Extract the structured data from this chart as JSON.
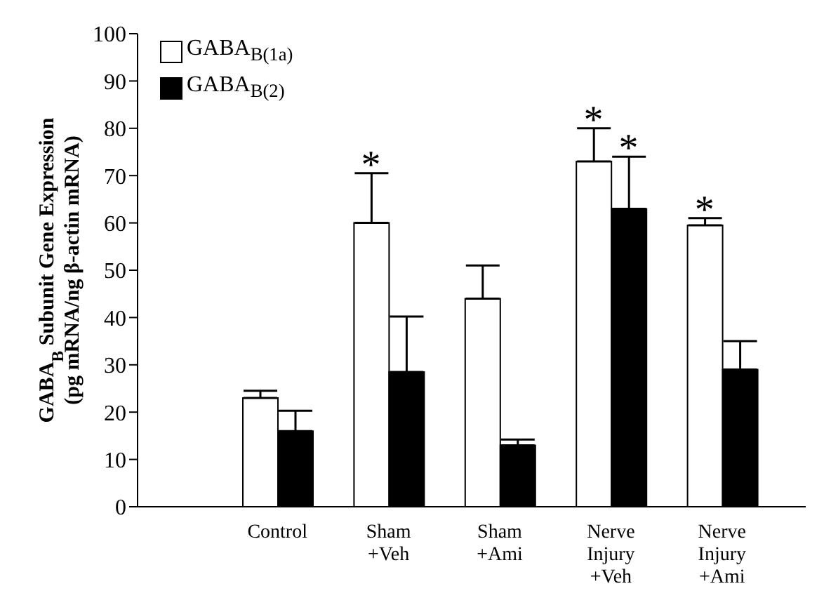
{
  "chart_data": {
    "type": "bar",
    "ylabel": "GABA$_{B}$ Subunit Gene Expression\n(pg mRNA/ng β-actin mRNA)",
    "categories": [
      "Control",
      "Sham\n+Veh",
      "Sham\n+Ami",
      "Nerve\nInjury\n+Veh",
      "Nerve\nInjury\n+Ami"
    ],
    "series": [
      {
        "name": "GABA$_{B(1a)}$",
        "color": "#ffffff",
        "values": [
          23,
          60,
          44,
          73,
          59.5
        ],
        "errors": [
          [
            23,
            24.5
          ],
          [
            60,
            70.5
          ],
          [
            44,
            51
          ],
          [
            73,
            80
          ],
          [
            59.5,
            61
          ]
        ]
      },
      {
        "name": "GABA$_{B(2)}$",
        "color": "#000000",
        "values": [
          16,
          28.5,
          13,
          63,
          29
        ],
        "errors": [
          [
            16,
            20.3
          ],
          [
            28.5,
            40.2
          ],
          [
            13,
            14.2
          ],
          [
            63,
            74
          ],
          [
            29,
            35
          ]
        ]
      }
    ],
    "ylim": [
      0,
      100
    ],
    "yticks": [
      0,
      10,
      20,
      30,
      40,
      50,
      60,
      70,
      80,
      90,
      100
    ],
    "grid": false,
    "legend": "top left",
    "annotations": [
      {
        "text": "*",
        "x": "Sham\n+Veh",
        "y": 60
      },
      {
        "text": "*",
        "x": "Nerve\nInjury\n+Veh",
        "y": 73
      },
      {
        "text": "*",
        "x": "Nerve\nInjury\n+Veh",
        "y": 63
      },
      {
        "text": "*",
        "x": "Nerve\nInjury\n+Ami",
        "y": 59.5
      }
    ]
  }
}
